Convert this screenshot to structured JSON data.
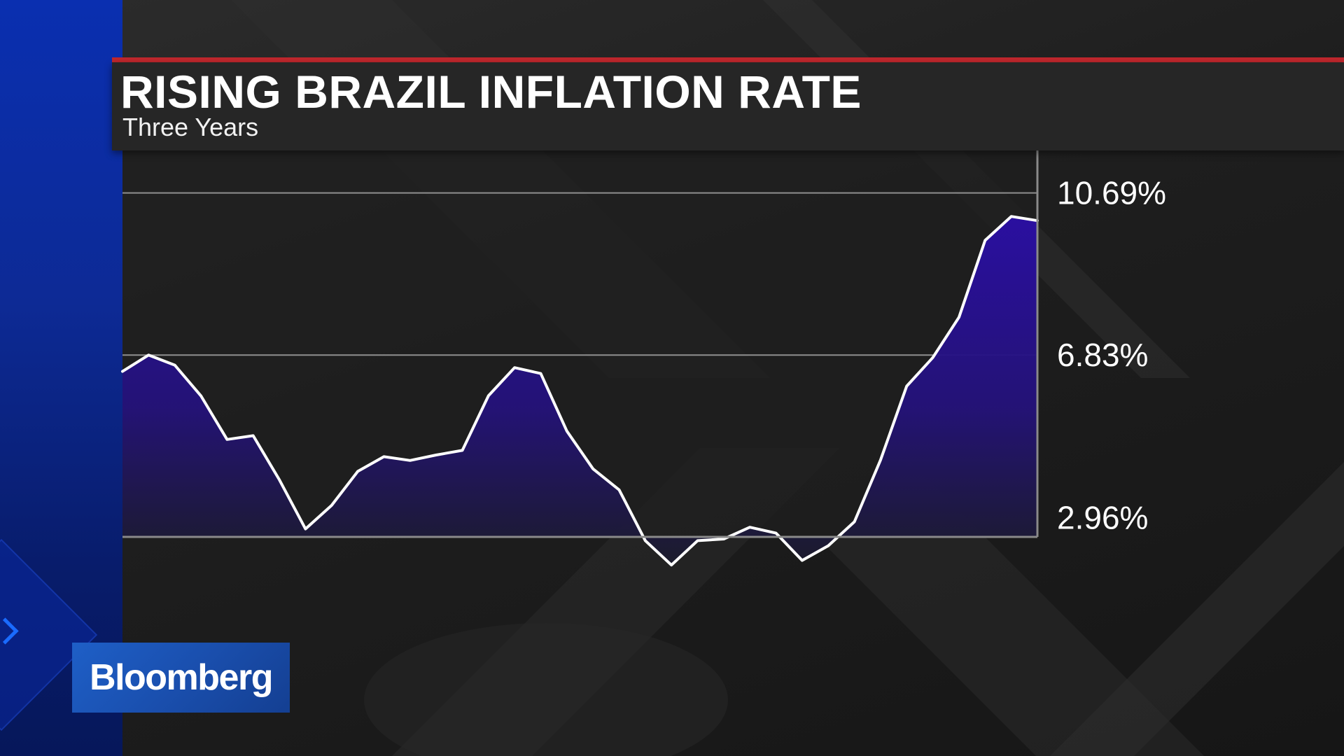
{
  "header": {
    "title": "RISING BRAZIL INFLATION RATE",
    "subtitle": "Three Years"
  },
  "logo": {
    "text": "Bloomberg"
  },
  "colors": {
    "accent_red": "#c0272d",
    "line": "#ffffff",
    "area_top": "#2a0fa0",
    "area_bottom": "#1b1b2c",
    "brand_blue": "#1a4fae"
  },
  "chart_data": {
    "type": "area",
    "title": "RISING BRAZIL INFLATION RATE",
    "subtitle": "Three Years",
    "xlabel": "",
    "ylabel": "",
    "grid": true,
    "y_tick_labels": [
      "10.69%",
      "6.83%",
      "2.96%"
    ],
    "y_ticks": [
      10.69,
      6.83,
      2.96
    ],
    "ylim": [
      2.5,
      11.7
    ],
    "series": [
      {
        "values": [
          6.44,
          6.83,
          6.59,
          5.86,
          4.82,
          4.91,
          3.86,
          2.69,
          3.25,
          4.06,
          4.41,
          4.32,
          4.45,
          4.56,
          5.86,
          6.53,
          6.39,
          5.02,
          4.12,
          3.62,
          2.41,
          1.83,
          2.41,
          2.45,
          2.73,
          2.59,
          1.94,
          2.29,
          2.86,
          4.33,
          6.09,
          6.77,
          7.73,
          9.56,
          10.13,
          10.03
        ]
      }
    ]
  }
}
